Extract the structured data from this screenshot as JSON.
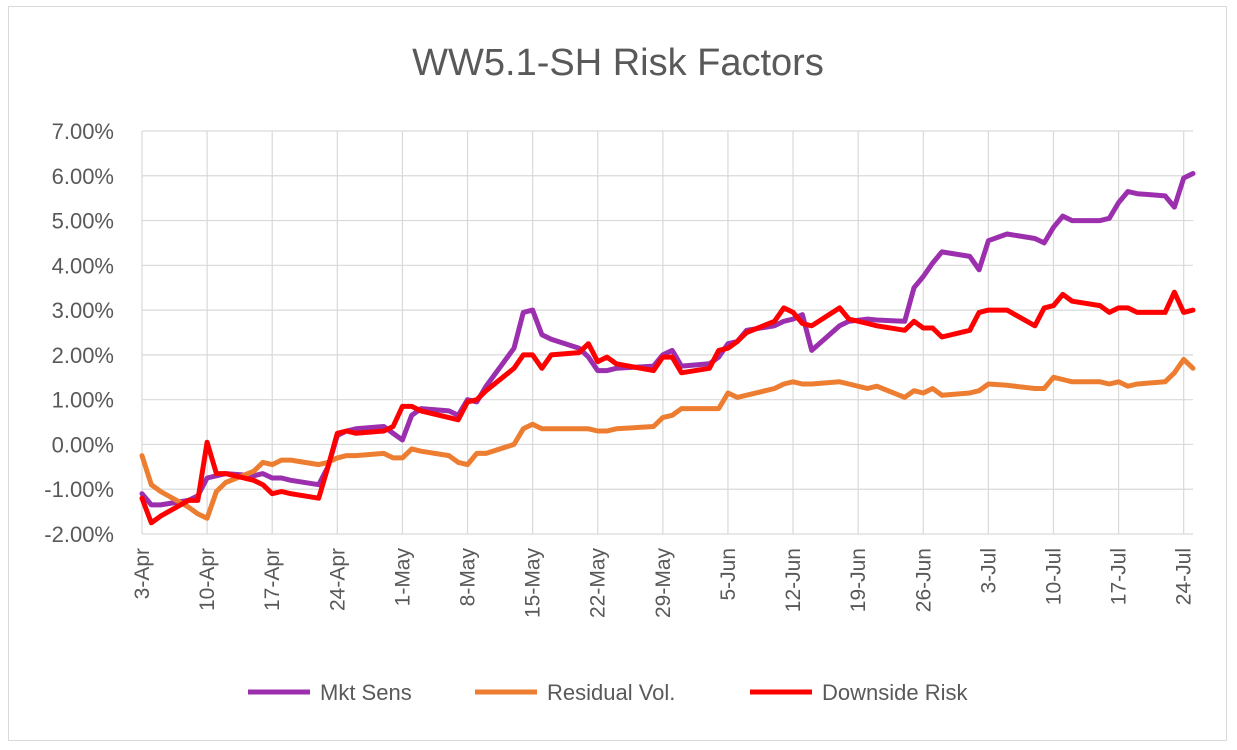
{
  "chart_data": {
    "type": "line",
    "title": "WW5.1-SH Risk Factors",
    "xlabel": "",
    "ylabel": "",
    "ylim": [
      -0.02,
      0.07
    ],
    "y_ticks": [
      -0.02,
      -0.01,
      0.0,
      0.01,
      0.02,
      0.03,
      0.04,
      0.05,
      0.06,
      0.07
    ],
    "y_tick_labels": [
      "-2.00%",
      "-1.00%",
      "0.00%",
      "1.00%",
      "2.00%",
      "3.00%",
      "4.00%",
      "5.00%",
      "6.00%",
      "7.00%"
    ],
    "x_range": [
      "2024-04-03",
      "2024-07-25"
    ],
    "x_ticks": [
      "2024-04-03",
      "2024-04-10",
      "2024-04-17",
      "2024-04-24",
      "2024-05-01",
      "2024-05-08",
      "2024-05-15",
      "2024-05-22",
      "2024-05-29",
      "2024-06-05",
      "2024-06-12",
      "2024-06-19",
      "2024-06-26",
      "2024-07-03",
      "2024-07-10",
      "2024-07-17",
      "2024-07-24"
    ],
    "x_tick_labels": [
      "3-Apr",
      "10-Apr",
      "17-Apr",
      "24-Apr",
      "1-May",
      "8-May",
      "15-May",
      "22-May",
      "29-May",
      "5-Jun",
      "12-Jun",
      "19-Jun",
      "26-Jun",
      "3-Jul",
      "10-Jul",
      "17-Jul",
      "24-Jul"
    ],
    "grid": true,
    "legend_position": "bottom",
    "series": [
      {
        "name": "Mkt Sens",
        "color": "#9b2fae",
        "x": [
          "2024-04-03",
          "2024-04-04",
          "2024-04-05",
          "2024-04-08",
          "2024-04-09",
          "2024-04-10",
          "2024-04-11",
          "2024-04-12",
          "2024-04-15",
          "2024-04-16",
          "2024-04-17",
          "2024-04-18",
          "2024-04-19",
          "2024-04-22",
          "2024-04-23",
          "2024-04-24",
          "2024-04-25",
          "2024-04-26",
          "2024-04-29",
          "2024-04-30",
          "2024-05-01",
          "2024-05-02",
          "2024-05-03",
          "2024-05-06",
          "2024-05-07",
          "2024-05-08",
          "2024-05-09",
          "2024-05-10",
          "2024-05-13",
          "2024-05-14",
          "2024-05-15",
          "2024-05-16",
          "2024-05-17",
          "2024-05-20",
          "2024-05-21",
          "2024-05-22",
          "2024-05-23",
          "2024-05-24",
          "2024-05-28",
          "2024-05-29",
          "2024-05-30",
          "2024-05-31",
          "2024-06-03",
          "2024-06-04",
          "2024-06-05",
          "2024-06-06",
          "2024-06-07",
          "2024-06-10",
          "2024-06-11",
          "2024-06-12",
          "2024-06-13",
          "2024-06-14",
          "2024-06-17",
          "2024-06-18",
          "2024-06-20",
          "2024-06-21",
          "2024-06-24",
          "2024-06-25",
          "2024-06-26",
          "2024-06-27",
          "2024-06-28",
          "2024-07-01",
          "2024-07-02",
          "2024-07-03",
          "2024-07-05",
          "2024-07-08",
          "2024-07-09",
          "2024-07-10",
          "2024-07-11",
          "2024-07-12",
          "2024-07-15",
          "2024-07-16",
          "2024-07-17",
          "2024-07-18",
          "2024-07-19",
          "2024-07-22",
          "2024-07-23",
          "2024-07-24",
          "2024-07-25"
        ],
        "values": [
          -0.011,
          -0.0135,
          -0.0135,
          -0.0125,
          -0.0115,
          -0.0075,
          -0.007,
          -0.0065,
          -0.007,
          -0.0065,
          -0.0075,
          -0.0075,
          -0.008,
          -0.009,
          -0.005,
          0.002,
          0.003,
          0.0035,
          0.004,
          0.0025,
          0.001,
          0.0065,
          0.008,
          0.0075,
          0.0065,
          0.01,
          0.0095,
          0.013,
          0.0215,
          0.0295,
          0.03,
          0.0245,
          0.0235,
          0.0215,
          0.0195,
          0.0165,
          0.0165,
          0.017,
          0.0175,
          0.02,
          0.021,
          0.0175,
          0.018,
          0.0195,
          0.0225,
          0.023,
          0.0255,
          0.0265,
          0.0275,
          0.028,
          0.029,
          0.021,
          0.0265,
          0.0275,
          0.028,
          0.0278,
          0.0275,
          0.035,
          0.0375,
          0.0405,
          0.043,
          0.042,
          0.039,
          0.0455,
          0.047,
          0.046,
          0.045,
          0.0485,
          0.051,
          0.05,
          0.05,
          0.0505,
          0.054,
          0.0565,
          0.056,
          0.0555,
          0.053,
          0.0595,
          0.0605
        ]
      },
      {
        "name": "Residual Vol.",
        "color": "#ed7d31",
        "x": [
          "2024-04-03",
          "2024-04-04",
          "2024-04-05",
          "2024-04-08",
          "2024-04-09",
          "2024-04-10",
          "2024-04-11",
          "2024-04-12",
          "2024-04-15",
          "2024-04-16",
          "2024-04-17",
          "2024-04-18",
          "2024-04-19",
          "2024-04-22",
          "2024-04-23",
          "2024-04-24",
          "2024-04-25",
          "2024-04-26",
          "2024-04-29",
          "2024-04-30",
          "2024-05-01",
          "2024-05-02",
          "2024-05-03",
          "2024-05-06",
          "2024-05-07",
          "2024-05-08",
          "2024-05-09",
          "2024-05-10",
          "2024-05-13",
          "2024-05-14",
          "2024-05-15",
          "2024-05-16",
          "2024-05-17",
          "2024-05-20",
          "2024-05-21",
          "2024-05-22",
          "2024-05-23",
          "2024-05-24",
          "2024-05-28",
          "2024-05-29",
          "2024-05-30",
          "2024-05-31",
          "2024-06-03",
          "2024-06-04",
          "2024-06-05",
          "2024-06-06",
          "2024-06-07",
          "2024-06-10",
          "2024-06-11",
          "2024-06-12",
          "2024-06-13",
          "2024-06-14",
          "2024-06-17",
          "2024-06-18",
          "2024-06-20",
          "2024-06-21",
          "2024-06-24",
          "2024-06-25",
          "2024-06-26",
          "2024-06-27",
          "2024-06-28",
          "2024-07-01",
          "2024-07-02",
          "2024-07-03",
          "2024-07-05",
          "2024-07-08",
          "2024-07-09",
          "2024-07-10",
          "2024-07-11",
          "2024-07-12",
          "2024-07-15",
          "2024-07-16",
          "2024-07-17",
          "2024-07-18",
          "2024-07-19",
          "2024-07-22",
          "2024-07-23",
          "2024-07-24",
          "2024-07-25"
        ],
        "values": [
          -0.0025,
          -0.009,
          -0.0105,
          -0.014,
          -0.0155,
          -0.0165,
          -0.0105,
          -0.0085,
          -0.006,
          -0.004,
          -0.0045,
          -0.0035,
          -0.0035,
          -0.0045,
          -0.004,
          -0.003,
          -0.0025,
          -0.0025,
          -0.002,
          -0.003,
          -0.003,
          -0.001,
          -0.0015,
          -0.0025,
          -0.004,
          -0.0045,
          -0.002,
          -0.002,
          0.0,
          0.0035,
          0.0045,
          0.0035,
          0.0035,
          0.0035,
          0.0035,
          0.003,
          0.003,
          0.0035,
          0.004,
          0.006,
          0.0065,
          0.008,
          0.008,
          0.008,
          0.0115,
          0.0105,
          0.011,
          0.0125,
          0.0135,
          0.014,
          0.0135,
          0.0135,
          0.014,
          0.0135,
          0.0125,
          0.013,
          0.0105,
          0.012,
          0.0115,
          0.0125,
          0.011,
          0.0115,
          0.012,
          0.0135,
          0.0132,
          0.0125,
          0.0125,
          0.015,
          0.0145,
          0.014,
          0.014,
          0.0135,
          0.014,
          0.013,
          0.0135,
          0.014,
          0.016,
          0.019,
          0.017
        ]
      },
      {
        "name": "Downside Risk",
        "color": "#ff0000",
        "x": [
          "2024-04-03",
          "2024-04-04",
          "2024-04-05",
          "2024-04-08",
          "2024-04-09",
          "2024-04-10",
          "2024-04-11",
          "2024-04-12",
          "2024-04-15",
          "2024-04-16",
          "2024-04-17",
          "2024-04-18",
          "2024-04-19",
          "2024-04-22",
          "2024-04-23",
          "2024-04-24",
          "2024-04-25",
          "2024-04-26",
          "2024-04-29",
          "2024-04-30",
          "2024-05-01",
          "2024-05-02",
          "2024-05-03",
          "2024-05-06",
          "2024-05-07",
          "2024-05-08",
          "2024-05-09",
          "2024-05-10",
          "2024-05-13",
          "2024-05-14",
          "2024-05-15",
          "2024-05-16",
          "2024-05-17",
          "2024-05-20",
          "2024-05-21",
          "2024-05-22",
          "2024-05-23",
          "2024-05-24",
          "2024-05-28",
          "2024-05-29",
          "2024-05-30",
          "2024-05-31",
          "2024-06-03",
          "2024-06-04",
          "2024-06-05",
          "2024-06-06",
          "2024-06-07",
          "2024-06-10",
          "2024-06-11",
          "2024-06-12",
          "2024-06-13",
          "2024-06-14",
          "2024-06-17",
          "2024-06-18",
          "2024-06-20",
          "2024-06-21",
          "2024-06-24",
          "2024-06-25",
          "2024-06-26",
          "2024-06-27",
          "2024-06-28",
          "2024-07-01",
          "2024-07-02",
          "2024-07-03",
          "2024-07-05",
          "2024-07-08",
          "2024-07-09",
          "2024-07-10",
          "2024-07-11",
          "2024-07-12",
          "2024-07-15",
          "2024-07-16",
          "2024-07-17",
          "2024-07-18",
          "2024-07-19",
          "2024-07-22",
          "2024-07-23",
          "2024-07-24",
          "2024-07-25"
        ],
        "values": [
          -0.012,
          -0.0175,
          -0.016,
          -0.0125,
          -0.0125,
          0.0005,
          -0.0065,
          -0.0065,
          -0.008,
          -0.009,
          -0.011,
          -0.0105,
          -0.011,
          -0.012,
          -0.005,
          0.0025,
          0.003,
          0.0025,
          0.003,
          0.004,
          0.0085,
          0.0085,
          0.0075,
          0.006,
          0.0055,
          0.0095,
          0.01,
          0.012,
          0.017,
          0.02,
          0.02,
          0.017,
          0.02,
          0.0205,
          0.0225,
          0.0185,
          0.0195,
          0.018,
          0.0165,
          0.0195,
          0.0195,
          0.016,
          0.017,
          0.021,
          0.0215,
          0.023,
          0.025,
          0.0275,
          0.0305,
          0.0295,
          0.027,
          0.0265,
          0.0305,
          0.028,
          0.027,
          0.0265,
          0.0255,
          0.0275,
          0.026,
          0.026,
          0.024,
          0.0255,
          0.0295,
          0.03,
          0.03,
          0.0265,
          0.0305,
          0.031,
          0.0335,
          0.032,
          0.031,
          0.0295,
          0.0305,
          0.0305,
          0.0295,
          0.0295,
          0.034,
          0.0295,
          0.03
        ]
      }
    ]
  }
}
